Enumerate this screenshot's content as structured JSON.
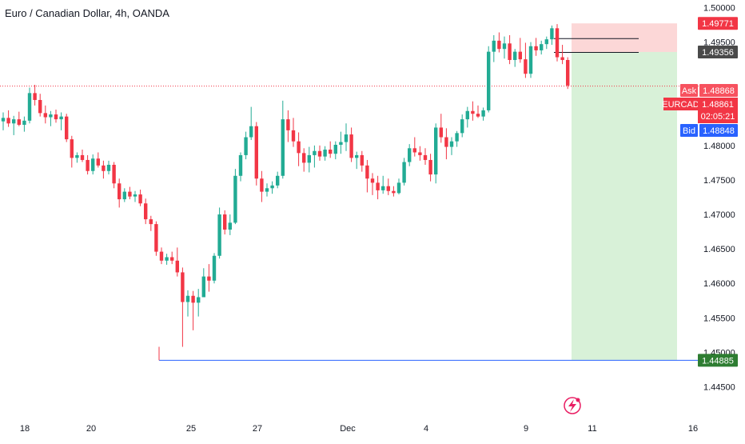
{
  "header": {
    "title": "Euro / Canadian Dollar, 4h, OANDA"
  },
  "colors": {
    "up": "#22ab94",
    "down": "#f23645",
    "stop_zone": "#fbd0d0",
    "target_zone": "#d4f0d4",
    "target_line": "#2962ff",
    "price_line": "#f23645",
    "bid": "#2962ff",
    "axis_text": "#131722",
    "event_icon": "#e91e63"
  },
  "chart_data": {
    "type": "candlestick",
    "symbol": "EURCAD",
    "timeframe": "4h",
    "ylim": [
      1.441,
      1.5011
    ],
    "y_ticks": [
      "1.50000",
      "1.49500",
      "1.48000",
      "1.47500",
      "1.47000",
      "1.46500",
      "1.46000",
      "1.45500",
      "1.45000",
      "1.44500"
    ],
    "x_ticks": [
      "18",
      "20",
      "25",
      "27",
      "Dec",
      "4",
      "9",
      "11",
      "16"
    ],
    "candles": [
      [
        1.4835,
        1.4848,
        1.4822,
        1.484
      ],
      [
        1.484,
        1.4851,
        1.4827,
        1.4832
      ],
      [
        1.4832,
        1.4843,
        1.4815,
        1.4838
      ],
      [
        1.4838,
        1.4849,
        1.4828,
        1.483
      ],
      [
        1.483,
        1.4842,
        1.482,
        1.4836
      ],
      [
        1.4836,
        1.4884,
        1.4832,
        1.4876
      ],
      [
        1.4876,
        1.4888,
        1.4858,
        1.4866
      ],
      [
        1.4866,
        1.4875,
        1.4842,
        1.4847
      ],
      [
        1.4847,
        1.4858,
        1.4832,
        1.4841
      ],
      [
        1.4841,
        1.485,
        1.4828,
        1.4845
      ],
      [
        1.4845,
        1.4852,
        1.4833,
        1.4838
      ],
      [
        1.4838,
        1.4848,
        1.4822,
        1.4842
      ],
      [
        1.4842,
        1.4846,
        1.4805,
        1.4809
      ],
      [
        1.4809,
        1.4814,
        1.4768,
        1.4782
      ],
      [
        1.4782,
        1.479,
        1.4775,
        1.4786
      ],
      [
        1.4786,
        1.4794,
        1.4776,
        1.4779
      ],
      [
        1.4779,
        1.4786,
        1.4758,
        1.4763
      ],
      [
        1.4763,
        1.4787,
        1.4758,
        1.4781
      ],
      [
        1.4781,
        1.479,
        1.4768,
        1.4771
      ],
      [
        1.4771,
        1.4778,
        1.4752,
        1.4763
      ],
      [
        1.4763,
        1.4778,
        1.4758,
        1.4772
      ],
      [
        1.4772,
        1.4776,
        1.4738,
        1.4745
      ],
      [
        1.4745,
        1.4752,
        1.471,
        1.4722
      ],
      [
        1.4722,
        1.4738,
        1.4718,
        1.4733
      ],
      [
        1.4733,
        1.474,
        1.4722,
        1.4726
      ],
      [
        1.4726,
        1.4734,
        1.4718,
        1.4729
      ],
      [
        1.4729,
        1.4736,
        1.4712,
        1.4716
      ],
      [
        1.4716,
        1.4723,
        1.4686,
        1.4693
      ],
      [
        1.4693,
        1.4698,
        1.4676,
        1.4686
      ],
      [
        1.4686,
        1.469,
        1.464,
        1.4646
      ],
      [
        1.4646,
        1.4652,
        1.4628,
        1.4633
      ],
      [
        1.4633,
        1.4643,
        1.4627,
        1.4638
      ],
      [
        1.4638,
        1.4646,
        1.4628,
        1.4633
      ],
      [
        1.4633,
        1.4652,
        1.461,
        1.4616
      ],
      [
        1.4616,
        1.4623,
        1.4508,
        1.4573
      ],
      [
        1.4573,
        1.459,
        1.4552,
        1.4582
      ],
      [
        1.4582,
        1.4589,
        1.4532,
        1.4572
      ],
      [
        1.4572,
        1.4592,
        1.4552,
        1.458
      ],
      [
        1.458,
        1.4622,
        1.4586,
        1.461
      ],
      [
        1.461,
        1.4628,
        1.4588,
        1.4604
      ],
      [
        1.4604,
        1.4644,
        1.46,
        1.464
      ],
      [
        1.464,
        1.471,
        1.4636,
        1.47
      ],
      [
        1.47,
        1.4706,
        1.4671,
        1.4678
      ],
      [
        1.4678,
        1.47,
        1.467,
        1.4688
      ],
      [
        1.4688,
        1.4766,
        1.4686,
        1.4756
      ],
      [
        1.4756,
        1.479,
        1.4748,
        1.4786
      ],
      [
        1.4786,
        1.482,
        1.478,
        1.4812
      ],
      [
        1.4812,
        1.4856,
        1.4808,
        1.4828
      ],
      [
        1.4828,
        1.4834,
        1.4742,
        1.4752
      ],
      [
        1.4752,
        1.4763,
        1.4718,
        1.4733
      ],
      [
        1.4733,
        1.4745,
        1.4726,
        1.4738
      ],
      [
        1.4738,
        1.4748,
        1.473,
        1.4742
      ],
      [
        1.4742,
        1.4762,
        1.4738,
        1.4756
      ],
      [
        1.4756,
        1.4865,
        1.4752,
        1.4838
      ],
      [
        1.4838,
        1.4851,
        1.4805,
        1.4822
      ],
      [
        1.4822,
        1.484,
        1.4798,
        1.4806
      ],
      [
        1.4806,
        1.4819,
        1.477,
        1.4789
      ],
      [
        1.4789,
        1.4796,
        1.4762,
        1.4775
      ],
      [
        1.4775,
        1.4798,
        1.4761,
        1.4786
      ],
      [
        1.4786,
        1.48,
        1.4768,
        1.4792
      ],
      [
        1.4792,
        1.48,
        1.4778,
        1.4784
      ],
      [
        1.4784,
        1.4799,
        1.4778,
        1.4794
      ],
      [
        1.4794,
        1.4806,
        1.4782,
        1.4788
      ],
      [
        1.4788,
        1.4806,
        1.478,
        1.4801
      ],
      [
        1.4801,
        1.482,
        1.4788,
        1.4805
      ],
      [
        1.4805,
        1.4832,
        1.4792,
        1.4816
      ],
      [
        1.4816,
        1.4826,
        1.4776,
        1.4782
      ],
      [
        1.4782,
        1.4791,
        1.4766,
        1.4786
      ],
      [
        1.4786,
        1.4792,
        1.4762,
        1.4771
      ],
      [
        1.4771,
        1.4779,
        1.4732,
        1.4752
      ],
      [
        1.4752,
        1.476,
        1.4728,
        1.4746
      ],
      [
        1.4746,
        1.4756,
        1.4722,
        1.4735
      ],
      [
        1.4735,
        1.4756,
        1.473,
        1.4741
      ],
      [
        1.4741,
        1.4752,
        1.4728,
        1.4734
      ],
      [
        1.4734,
        1.4741,
        1.4726,
        1.4731
      ],
      [
        1.4731,
        1.4752,
        1.4729,
        1.4746
      ],
      [
        1.4746,
        1.4782,
        1.4742,
        1.4776
      ],
      [
        1.4776,
        1.4802,
        1.477,
        1.4796
      ],
      [
        1.4796,
        1.4812,
        1.4784,
        1.479
      ],
      [
        1.479,
        1.4799,
        1.4778,
        1.4786
      ],
      [
        1.4786,
        1.4796,
        1.4772,
        1.4779
      ],
      [
        1.4779,
        1.4788,
        1.4748,
        1.4758
      ],
      [
        1.4758,
        1.4832,
        1.4745,
        1.4826
      ],
      [
        1.4826,
        1.4846,
        1.4804,
        1.4812
      ],
      [
        1.4812,
        1.4825,
        1.478,
        1.4798
      ],
      [
        1.4798,
        1.4812,
        1.4786,
        1.4806
      ],
      [
        1.4806,
        1.4821,
        1.4798,
        1.4818
      ],
      [
        1.4818,
        1.4845,
        1.4812,
        1.4838
      ],
      [
        1.4838,
        1.4856,
        1.4826,
        1.485
      ],
      [
        1.485,
        1.4864,
        1.4836,
        1.4846
      ],
      [
        1.4846,
        1.4858,
        1.484,
        1.4842
      ],
      [
        1.4842,
        1.4855,
        1.4836,
        1.4851
      ],
      [
        1.4851,
        1.4944,
        1.4848,
        1.4936
      ],
      [
        1.4936,
        1.496,
        1.4921,
        1.4952
      ],
      [
        1.4952,
        1.4964,
        1.4935,
        1.494
      ],
      [
        1.494,
        1.4958,
        1.4926,
        1.4948
      ],
      [
        1.4948,
        1.496,
        1.4918,
        1.4924
      ],
      [
        1.4924,
        1.494,
        1.4914,
        1.4936
      ],
      [
        1.4936,
        1.4956,
        1.492,
        1.4925
      ],
      [
        1.4925,
        1.4949,
        1.4898,
        1.4904
      ],
      [
        1.4904,
        1.495,
        1.4898,
        1.4944
      ],
      [
        1.4944,
        1.4956,
        1.493,
        1.4938
      ],
      [
        1.4938,
        1.4952,
        1.4932,
        1.4947
      ],
      [
        1.4947,
        1.4958,
        1.494,
        1.4954
      ],
      [
        1.4954,
        1.4974,
        1.4946,
        1.497
      ],
      [
        1.497,
        1.4976,
        1.4922,
        1.4928
      ],
      [
        1.4928,
        1.4946,
        1.4918,
        1.4924
      ],
      [
        1.4924,
        1.4928,
        1.4882,
        1.4887
      ]
    ],
    "price_scale_labels": {
      "stop": "1.49771",
      "entry": "1.49356",
      "ask_label": "Ask",
      "ask": "1.48868",
      "symbol_label": "EURCAD",
      "last": "1.48861",
      "countdown": "02:05:21",
      "bid_label": "Bid",
      "bid": "1.48848",
      "target": "1.44885"
    },
    "position": {
      "type": "short",
      "entry": 1.49356,
      "stop": 1.49771,
      "target": 1.44885
    },
    "current_price": 1.48861,
    "horizontal_lines": [
      1.4955,
      1.4935
    ],
    "legend": "none",
    "grid": false
  }
}
